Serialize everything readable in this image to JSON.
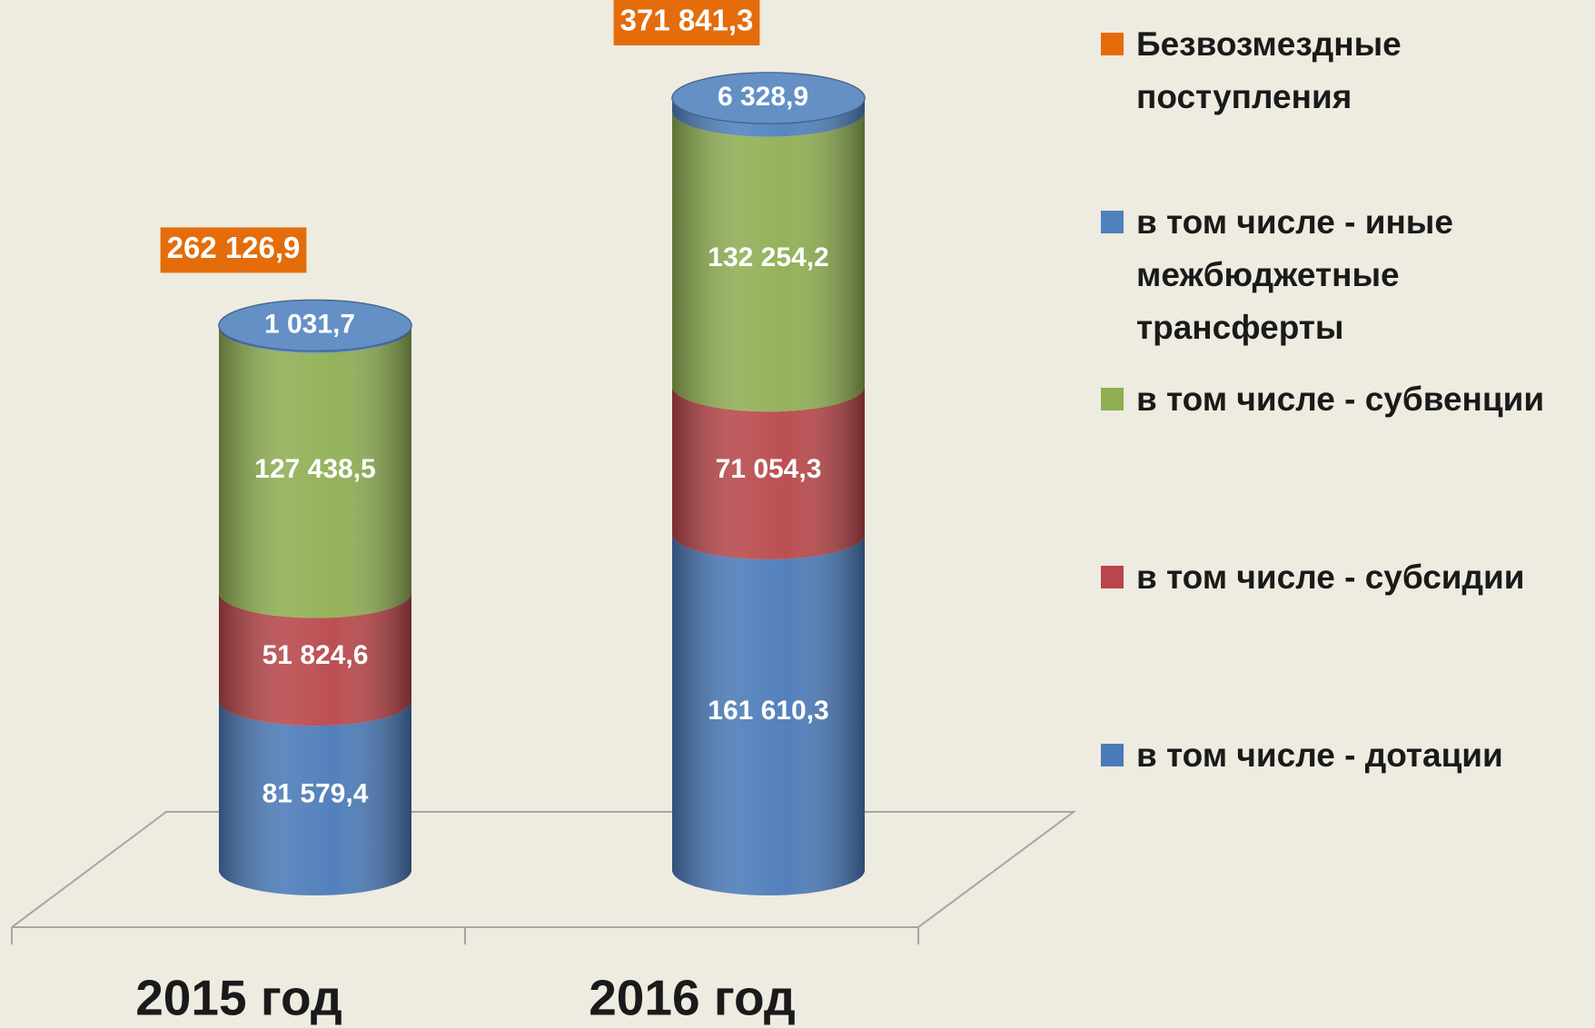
{
  "chart_data": {
    "type": "cylinder-stacked-bar",
    "categories": [
      "2015 год",
      "2016 год"
    ],
    "series": [
      {
        "name": "в том числе - дотации",
        "color": "#4a7ab8",
        "values": [
          81579.4,
          161610.3
        ],
        "value_labels": [
          "81 579,4",
          "161 610,3"
        ]
      },
      {
        "name": "в том числе - субсидии",
        "color": "#b8464a",
        "values": [
          51824.6,
          71054.3
        ],
        "value_labels": [
          "51 824,6",
          "71 054,3"
        ]
      },
      {
        "name": "в том числе - субвенции",
        "color": "#8fae52",
        "values": [
          127438.5,
          132254.2
        ],
        "value_labels": [
          "127 438,5",
          "132 254,2"
        ]
      },
      {
        "name": "в том числе - иные межбюджетные трансферты",
        "color": "#4f81bd",
        "values": [
          1031.7,
          6328.9
        ],
        "value_labels": [
          "1 031,7",
          "6 328,9"
        ]
      }
    ],
    "total": {
      "name": "Безвозмездные поступления",
      "color": "#e46c0a",
      "values": [
        262126.9,
        371841.3
      ],
      "value_labels": [
        "262 126,9",
        "371 841,3"
      ]
    }
  }
}
